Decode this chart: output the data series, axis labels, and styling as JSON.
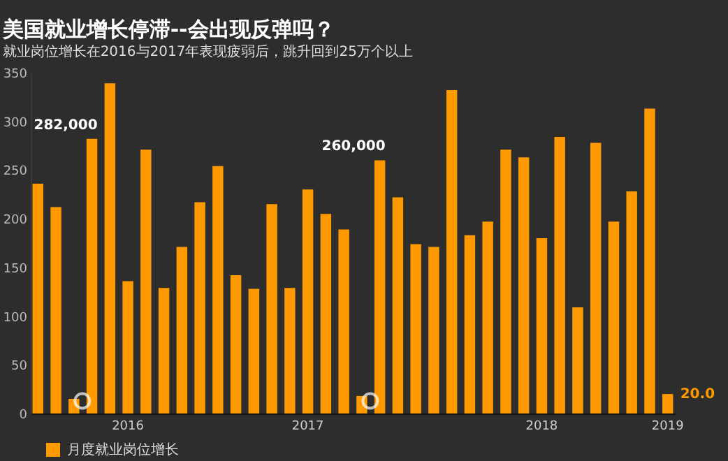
{
  "chart_data": {
    "type": "bar",
    "title": "美国就业增长停滞--会出现反弹吗？",
    "subtitle": "就业岗位增长在2016与2017年表现疲弱后，跳升回到25万个以上",
    "categories": [
      null,
      null,
      null,
      null,
      null,
      "2016",
      null,
      null,
      null,
      null,
      null,
      null,
      null,
      null,
      null,
      "2017",
      null,
      null,
      null,
      null,
      null,
      null,
      null,
      null,
      null,
      null,
      null,
      null,
      "2018",
      null,
      null,
      null,
      null,
      null,
      null,
      "2019"
    ],
    "series": [
      {
        "name": "月度就业岗位增长",
        "color": "#ff9900",
        "values": [
          236,
          212,
          15,
          282,
          339,
          136,
          271,
          129,
          171,
          217,
          254,
          142,
          128,
          215,
          129,
          230,
          205,
          189,
          18,
          260,
          222,
          174,
          171,
          332,
          183,
          197,
          271,
          263,
          180,
          284,
          109,
          278,
          197,
          228,
          313,
          20
        ]
      }
    ],
    "value_labels": [
      null,
      null,
      null,
      "282,000",
      null,
      null,
      null,
      null,
      null,
      null,
      null,
      null,
      null,
      null,
      null,
      null,
      null,
      null,
      null,
      "260,000",
      null,
      null,
      null,
      null,
      null,
      null,
      null,
      null,
      null,
      null,
      null,
      null,
      null,
      null,
      null,
      "20.0"
    ],
    "ylim": [
      0,
      350
    ],
    "yticks": [
      0,
      50,
      100,
      150,
      200,
      250,
      300,
      350
    ],
    "grid": false,
    "legend": "bottom left"
  }
}
